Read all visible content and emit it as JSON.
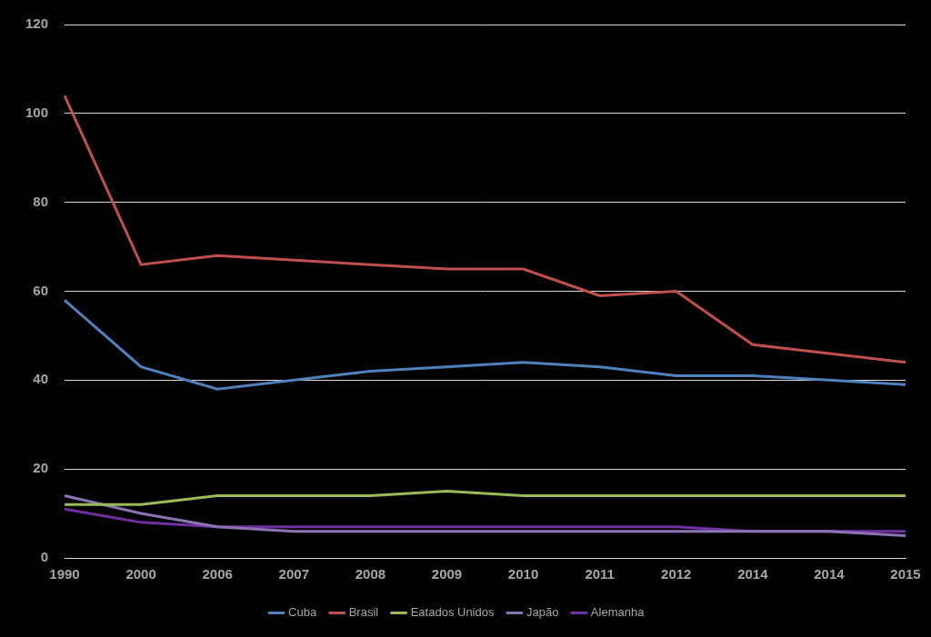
{
  "chart_data": {
    "type": "line",
    "categories": [
      "1990",
      "2000",
      "2006",
      "2007",
      "2008",
      "2009",
      "2010",
      "2011",
      "2012",
      "2014",
      "2014",
      "2015"
    ],
    "series": [
      {
        "name": "Cuba",
        "color": "#4f81bd",
        "values": [
          58,
          43,
          38,
          40,
          42,
          43,
          44,
          43,
          41,
          41,
          40,
          39
        ]
      },
      {
        "name": "Brasil",
        "color": "#c0504d",
        "values": [
          104,
          66,
          68,
          67,
          66,
          65,
          65,
          59,
          60,
          48,
          46,
          44
        ]
      },
      {
        "name": "Eatados Unidos",
        "color": "#9bbb59",
        "values": [
          12,
          12,
          14,
          14,
          14,
          15,
          14,
          14,
          14,
          14,
          14,
          14
        ]
      },
      {
        "name": "Japão",
        "color": "#8c74b4",
        "values": [
          14,
          10,
          7,
          6,
          6,
          6,
          6,
          6,
          6,
          6,
          6,
          5
        ]
      },
      {
        "name": "Alemanha",
        "color": "#7030a0",
        "values": [
          11,
          8,
          7,
          7,
          7,
          7,
          7,
          7,
          7,
          6,
          6,
          6
        ]
      }
    ],
    "ylim": [
      0,
      120
    ],
    "yticks": [
      0,
      20,
      40,
      60,
      80,
      100,
      120
    ],
    "grid": true,
    "legend": "bottom"
  }
}
